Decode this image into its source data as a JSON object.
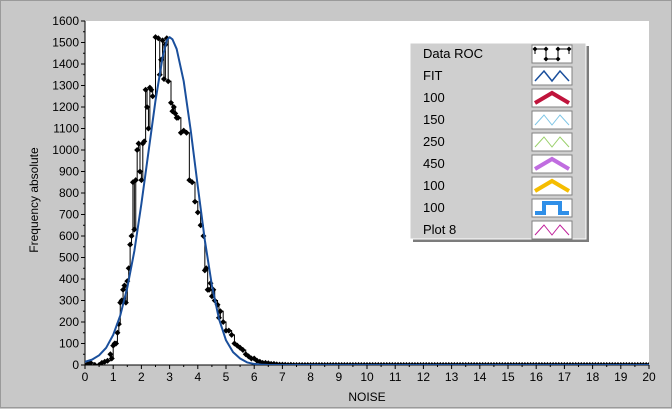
{
  "chart_data": {
    "type": "line",
    "xlabel": "NOISE",
    "ylabel": "Frequency absolute",
    "xlim": [
      0,
      20
    ],
    "ylim": [
      0,
      1600
    ],
    "x_ticks": [
      0,
      1,
      2,
      3,
      4,
      5,
      6,
      7,
      8,
      9,
      10,
      11,
      12,
      13,
      14,
      15,
      16,
      17,
      18,
      19,
      20
    ],
    "y_ticks": [
      0,
      100,
      200,
      300,
      400,
      500,
      600,
      700,
      800,
      900,
      1000,
      1100,
      1200,
      1300,
      1400,
      1500,
      1600
    ],
    "legend_position": "top-right",
    "series": [
      {
        "name": "Data ROC",
        "color": "#000000",
        "style": "step-markers",
        "points": [
          [
            0.1,
            5
          ],
          [
            0.2,
            10
          ],
          [
            0.35,
            0
          ],
          [
            0.5,
            0
          ],
          [
            0.6,
            10
          ],
          [
            0.7,
            15
          ],
          [
            0.8,
            20
          ],
          [
            0.9,
            50
          ],
          [
            0.95,
            30
          ],
          [
            1.0,
            90
          ],
          [
            1.05,
            100
          ],
          [
            1.1,
            100
          ],
          [
            1.15,
            150
          ],
          [
            1.2,
            190
          ],
          [
            1.25,
            290
          ],
          [
            1.3,
            300
          ],
          [
            1.35,
            350
          ],
          [
            1.4,
            370
          ],
          [
            1.45,
            290
          ],
          [
            1.5,
            390
          ],
          [
            1.55,
            450
          ],
          [
            1.6,
            560
          ],
          [
            1.65,
            600
          ],
          [
            1.7,
            850
          ],
          [
            1.75,
            630
          ],
          [
            1.8,
            860
          ],
          [
            1.85,
            1000
          ],
          [
            1.9,
            1030
          ],
          [
            1.95,
            900
          ],
          [
            2.0,
            860
          ],
          [
            2.05,
            1030
          ],
          [
            2.1,
            1040
          ],
          [
            2.15,
            1280
          ],
          [
            2.2,
            1200
          ],
          [
            2.25,
            1100
          ],
          [
            2.3,
            1290
          ],
          [
            2.35,
            1280
          ],
          [
            2.4,
            1250
          ],
          [
            2.5,
            1525
          ],
          [
            2.6,
            1520
          ],
          [
            2.65,
            1350
          ],
          [
            2.7,
            1420
          ],
          [
            2.75,
            1510
          ],
          [
            2.8,
            1330
          ],
          [
            2.85,
            1490
          ],
          [
            2.9,
            1520
          ],
          [
            2.95,
            1320
          ],
          [
            3.05,
            1220
          ],
          [
            3.1,
            1180
          ],
          [
            3.15,
            1200
          ],
          [
            3.2,
            1170
          ],
          [
            3.25,
            1150
          ],
          [
            3.3,
            1150
          ],
          [
            3.4,
            1080
          ],
          [
            3.5,
            1090
          ],
          [
            3.6,
            1080
          ],
          [
            3.7,
            860
          ],
          [
            3.8,
            850
          ],
          [
            3.9,
            760
          ],
          [
            4.0,
            710
          ],
          [
            4.1,
            650
          ],
          [
            4.2,
            600
          ],
          [
            4.25,
            440
          ],
          [
            4.3,
            450
          ],
          [
            4.35,
            350
          ],
          [
            4.4,
            350
          ],
          [
            4.45,
            380
          ],
          [
            4.5,
            320
          ],
          [
            4.55,
            350
          ],
          [
            4.6,
            300
          ],
          [
            4.7,
            280
          ],
          [
            4.75,
            220
          ],
          [
            4.8,
            250
          ],
          [
            4.9,
            200
          ],
          [
            5.0,
            160
          ],
          [
            5.1,
            160
          ],
          [
            5.2,
            140
          ],
          [
            5.3,
            100
          ],
          [
            5.4,
            90
          ],
          [
            5.5,
            80
          ],
          [
            5.6,
            70
          ],
          [
            5.7,
            50
          ],
          [
            5.8,
            40
          ],
          [
            5.9,
            30
          ],
          [
            6.0,
            30
          ],
          [
            6.1,
            20
          ],
          [
            6.2,
            15
          ],
          [
            6.3,
            10
          ],
          [
            6.4,
            10
          ],
          [
            6.5,
            8
          ],
          [
            6.6,
            5
          ],
          [
            6.7,
            5
          ],
          [
            6.8,
            3
          ],
          [
            6.9,
            2
          ],
          [
            7.0,
            2
          ],
          [
            7.1,
            1
          ],
          [
            7.2,
            0
          ],
          [
            7.3,
            1
          ],
          [
            7.4,
            0
          ],
          [
            7.5,
            0
          ],
          [
            7.6,
            0
          ],
          [
            7.7,
            0
          ],
          [
            7.8,
            0
          ],
          [
            7.9,
            0
          ],
          [
            8.0,
            0
          ],
          [
            8.1,
            0
          ],
          [
            8.2,
            0
          ],
          [
            8.3,
            0
          ],
          [
            8.4,
            0
          ],
          [
            8.5,
            0
          ],
          [
            8.6,
            0
          ],
          [
            8.7,
            0
          ],
          [
            8.8,
            0
          ],
          [
            8.9,
            0
          ],
          [
            9.0,
            0
          ],
          [
            9.1,
            0
          ],
          [
            9.2,
            0
          ],
          [
            9.3,
            0
          ],
          [
            9.4,
            0
          ],
          [
            9.5,
            0
          ],
          [
            9.6,
            0
          ],
          [
            9.7,
            0
          ],
          [
            9.8,
            0
          ],
          [
            9.9,
            0
          ],
          [
            10.0,
            0
          ],
          [
            10.1,
            0
          ],
          [
            10.2,
            0
          ],
          [
            10.3,
            0
          ],
          [
            10.4,
            0
          ],
          [
            10.5,
            0
          ],
          [
            10.6,
            0
          ],
          [
            10.7,
            0
          ],
          [
            10.8,
            0
          ],
          [
            10.9,
            0
          ],
          [
            11.0,
            0
          ],
          [
            11.1,
            0
          ],
          [
            11.2,
            0
          ],
          [
            11.3,
            0
          ],
          [
            11.4,
            0
          ],
          [
            11.5,
            0
          ],
          [
            11.6,
            0
          ],
          [
            11.7,
            0
          ],
          [
            11.8,
            0
          ],
          [
            11.9,
            0
          ],
          [
            12.0,
            0
          ],
          [
            12.1,
            0
          ],
          [
            12.2,
            0
          ],
          [
            12.3,
            0
          ],
          [
            12.4,
            0
          ],
          [
            12.5,
            0
          ],
          [
            12.6,
            0
          ],
          [
            12.7,
            0
          ],
          [
            12.8,
            0
          ],
          [
            12.9,
            0
          ],
          [
            13.0,
            0
          ],
          [
            13.1,
            0
          ],
          [
            13.2,
            0
          ],
          [
            13.3,
            0
          ],
          [
            13.4,
            0
          ],
          [
            13.5,
            0
          ],
          [
            13.6,
            0
          ],
          [
            13.7,
            0
          ],
          [
            13.8,
            0
          ],
          [
            13.9,
            0
          ],
          [
            14.0,
            0
          ],
          [
            14.1,
            0
          ],
          [
            14.2,
            0
          ],
          [
            14.3,
            0
          ],
          [
            14.4,
            0
          ],
          [
            14.5,
            0
          ],
          [
            14.6,
            0
          ],
          [
            14.7,
            0
          ],
          [
            14.8,
            0
          ],
          [
            14.9,
            0
          ],
          [
            15.0,
            0
          ],
          [
            15.1,
            0
          ],
          [
            15.2,
            0
          ],
          [
            15.3,
            0
          ],
          [
            15.4,
            0
          ],
          [
            15.5,
            0
          ],
          [
            15.6,
            0
          ],
          [
            15.7,
            0
          ],
          [
            15.8,
            0
          ],
          [
            15.9,
            0
          ],
          [
            16.0,
            0
          ],
          [
            16.1,
            0
          ],
          [
            16.2,
            0
          ],
          [
            16.3,
            0
          ],
          [
            16.4,
            0
          ],
          [
            16.5,
            0
          ],
          [
            16.6,
            0
          ],
          [
            16.7,
            0
          ],
          [
            16.8,
            0
          ],
          [
            16.9,
            0
          ],
          [
            17.0,
            0
          ],
          [
            17.1,
            0
          ],
          [
            17.2,
            0
          ],
          [
            17.3,
            0
          ],
          [
            17.4,
            0
          ],
          [
            17.5,
            0
          ],
          [
            17.6,
            0
          ],
          [
            17.7,
            0
          ],
          [
            17.8,
            0
          ],
          [
            17.9,
            0
          ],
          [
            18.0,
            0
          ],
          [
            18.1,
            0
          ],
          [
            18.2,
            0
          ],
          [
            18.3,
            0
          ],
          [
            18.4,
            0
          ],
          [
            18.5,
            0
          ],
          [
            18.6,
            0
          ],
          [
            18.7,
            0
          ],
          [
            18.8,
            0
          ],
          [
            18.9,
            0
          ],
          [
            19.0,
            0
          ],
          [
            19.1,
            0
          ],
          [
            19.2,
            0
          ],
          [
            19.3,
            0
          ],
          [
            19.4,
            0
          ],
          [
            19.5,
            0
          ],
          [
            19.6,
            0
          ],
          [
            19.7,
            0
          ],
          [
            19.8,
            0
          ],
          [
            19.9,
            0
          ],
          [
            20.0,
            0
          ]
        ]
      },
      {
        "name": "FIT",
        "color": "#1a4f9c",
        "style": "line",
        "points": [
          [
            0,
            15
          ],
          [
            0.25,
            25
          ],
          [
            0.5,
            45
          ],
          [
            0.75,
            80
          ],
          [
            1.0,
            140
          ],
          [
            1.25,
            230
          ],
          [
            1.5,
            360
          ],
          [
            1.75,
            530
          ],
          [
            2.0,
            750
          ],
          [
            2.25,
            990
          ],
          [
            2.5,
            1230
          ],
          [
            2.75,
            1430
          ],
          [
            2.9,
            1510
          ],
          [
            3.0,
            1525
          ],
          [
            3.1,
            1515
          ],
          [
            3.25,
            1470
          ],
          [
            3.5,
            1320
          ],
          [
            3.75,
            1090
          ],
          [
            4.0,
            830
          ],
          [
            4.25,
            580
          ],
          [
            4.5,
            370
          ],
          [
            4.75,
            215
          ],
          [
            5.0,
            115
          ],
          [
            5.25,
            60
          ],
          [
            5.5,
            30
          ],
          [
            5.75,
            12
          ],
          [
            6.0,
            5
          ],
          [
            6.25,
            2
          ],
          [
            6.5,
            0
          ],
          [
            20,
            0
          ]
        ]
      }
    ],
    "legend": [
      {
        "label": "Data ROC",
        "color": "#000000",
        "icon": "line-with-diamond-markers"
      },
      {
        "label": "FIT",
        "color": "#1a4f9c",
        "icon": "zigzag-line"
      },
      {
        "label": "100",
        "color": "#c0143c",
        "icon": "thick-zigzag"
      },
      {
        "label": "150",
        "color": "#7fc6e6",
        "icon": "thin-zigzag"
      },
      {
        "label": "250",
        "color": "#9ad06a",
        "icon": "thin-zigzag"
      },
      {
        "label": "450",
        "color": "#c06de0",
        "icon": "thick-zigzag"
      },
      {
        "label": "100",
        "color": "#f5bd00",
        "icon": "thick-zigzag"
      },
      {
        "label": "100",
        "color": "#2f8fe8",
        "icon": "square-pulse"
      },
      {
        "label": "Plot 8",
        "color": "#c0209a",
        "icon": "thin-zigzag"
      }
    ]
  }
}
